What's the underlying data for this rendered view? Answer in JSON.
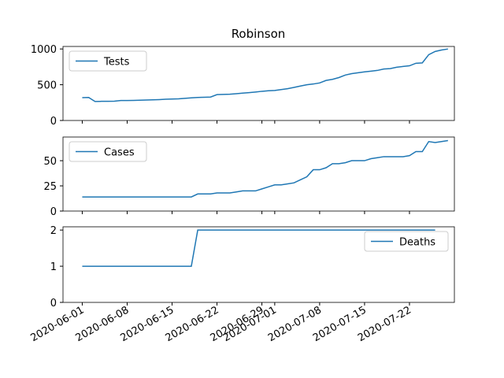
{
  "chart_data": [
    {
      "type": "line",
      "title": "Robinson",
      "x": [
        "2020-06-01",
        "2020-06-02",
        "2020-06-03",
        "2020-06-04",
        "2020-06-05",
        "2020-06-06",
        "2020-06-07",
        "2020-06-08",
        "2020-06-09",
        "2020-06-10",
        "2020-06-11",
        "2020-06-12",
        "2020-06-13",
        "2020-06-14",
        "2020-06-15",
        "2020-06-16",
        "2020-06-17",
        "2020-06-18",
        "2020-06-19",
        "2020-06-20",
        "2020-06-21",
        "2020-06-22",
        "2020-06-23",
        "2020-06-24",
        "2020-06-25",
        "2020-06-26",
        "2020-06-27",
        "2020-06-28",
        "2020-06-29",
        "2020-06-30",
        "2020-07-01",
        "2020-07-02",
        "2020-07-03",
        "2020-07-04",
        "2020-07-05",
        "2020-07-06",
        "2020-07-07",
        "2020-07-08",
        "2020-07-09",
        "2020-07-10",
        "2020-07-11",
        "2020-07-12",
        "2020-07-13",
        "2020-07-14",
        "2020-07-15",
        "2020-07-16",
        "2020-07-17",
        "2020-07-18",
        "2020-07-19",
        "2020-07-20",
        "2020-07-21",
        "2020-07-22",
        "2020-07-23",
        "2020-07-24",
        "2020-07-25",
        "2020-07-26",
        "2020-07-27",
        "2020-07-28"
      ],
      "series": [
        {
          "name": "Tests",
          "color": "#1f77b4",
          "values": [
            320,
            322,
            265,
            268,
            268,
            270,
            280,
            280,
            281,
            283,
            286,
            289,
            292,
            297,
            300,
            303,
            310,
            316,
            322,
            325,
            328,
            362,
            365,
            368,
            375,
            382,
            390,
            398,
            408,
            415,
            420,
            432,
            445,
            462,
            482,
            500,
            510,
            525,
            560,
            575,
            600,
            635,
            655,
            668,
            680,
            690,
            700,
            720,
            725,
            745,
            755,
            765,
            800,
            805,
            920,
            965,
            985,
            1000
          ]
        }
      ],
      "xlim": [
        "2020-05-29",
        "2020-07-29"
      ],
      "ylim": [
        0,
        1035
      ],
      "yticks": [
        0,
        500,
        1000
      ],
      "legend": "upper left"
    },
    {
      "type": "line",
      "x": [
        "2020-06-01",
        "2020-06-02",
        "2020-06-03",
        "2020-06-04",
        "2020-06-05",
        "2020-06-06",
        "2020-06-07",
        "2020-06-08",
        "2020-06-09",
        "2020-06-10",
        "2020-06-11",
        "2020-06-12",
        "2020-06-13",
        "2020-06-14",
        "2020-06-15",
        "2020-06-16",
        "2020-06-17",
        "2020-06-18",
        "2020-06-19",
        "2020-06-20",
        "2020-06-21",
        "2020-06-22",
        "2020-06-23",
        "2020-06-24",
        "2020-06-25",
        "2020-06-26",
        "2020-06-27",
        "2020-06-28",
        "2020-06-29",
        "2020-06-30",
        "2020-07-01",
        "2020-07-02",
        "2020-07-03",
        "2020-07-04",
        "2020-07-05",
        "2020-07-06",
        "2020-07-07",
        "2020-07-08",
        "2020-07-09",
        "2020-07-10",
        "2020-07-11",
        "2020-07-12",
        "2020-07-13",
        "2020-07-14",
        "2020-07-15",
        "2020-07-16",
        "2020-07-17",
        "2020-07-18",
        "2020-07-19",
        "2020-07-20",
        "2020-07-21",
        "2020-07-22",
        "2020-07-23",
        "2020-07-24",
        "2020-07-25",
        "2020-07-26",
        "2020-07-27",
        "2020-07-28"
      ],
      "series": [
        {
          "name": "Cases",
          "color": "#1f77b4",
          "values": [
            14,
            14,
            14,
            14,
            14,
            14,
            14,
            14,
            14,
            14,
            14,
            14,
            14,
            14,
            14,
            14,
            14,
            14,
            17,
            17,
            17,
            18,
            18,
            18,
            19,
            20,
            20,
            20,
            22,
            24,
            26,
            26,
            27,
            28,
            31,
            34,
            41,
            41,
            43,
            47,
            47,
            48,
            50,
            50,
            50,
            52,
            53,
            54,
            54,
            54,
            54,
            55,
            59,
            59,
            69,
            68,
            69,
            70
          ]
        }
      ],
      "xlim": [
        "2020-05-29",
        "2020-07-29"
      ],
      "ylim": [
        0,
        73.5
      ],
      "yticks": [
        0,
        25,
        50
      ],
      "legend": "upper left"
    },
    {
      "type": "line",
      "x": [
        "2020-06-01",
        "2020-06-02",
        "2020-06-03",
        "2020-06-04",
        "2020-06-05",
        "2020-06-06",
        "2020-06-07",
        "2020-06-08",
        "2020-06-09",
        "2020-06-10",
        "2020-06-11",
        "2020-06-12",
        "2020-06-13",
        "2020-06-14",
        "2020-06-15",
        "2020-06-16",
        "2020-06-17",
        "2020-06-18",
        "2020-06-19",
        "2020-06-20",
        "2020-06-21",
        "2020-06-22",
        "2020-06-23",
        "2020-06-24",
        "2020-06-25",
        "2020-06-26",
        "2020-06-27",
        "2020-06-28",
        "2020-06-29",
        "2020-06-30",
        "2020-07-01",
        "2020-07-02",
        "2020-07-03",
        "2020-07-04",
        "2020-07-05",
        "2020-07-06",
        "2020-07-07",
        "2020-07-08",
        "2020-07-09",
        "2020-07-10",
        "2020-07-11",
        "2020-07-12",
        "2020-07-13",
        "2020-07-14",
        "2020-07-15",
        "2020-07-16",
        "2020-07-17",
        "2020-07-18",
        "2020-07-19",
        "2020-07-20",
        "2020-07-21",
        "2020-07-22",
        "2020-07-23",
        "2020-07-24",
        "2020-07-25",
        "2020-07-26",
        "2020-07-27",
        "2020-07-28"
      ],
      "series": [
        {
          "name": "Deaths",
          "color": "#1f77b4",
          "values": [
            1,
            1,
            1,
            1,
            1,
            1,
            1,
            1,
            1,
            1,
            1,
            1,
            1,
            1,
            1,
            1,
            1,
            1,
            2,
            2,
            2,
            2,
            2,
            2,
            2,
            2,
            2,
            2,
            2,
            2,
            2,
            2,
            2,
            2,
            2,
            2,
            2,
            2,
            2,
            2,
            2,
            2,
            2,
            2,
            2,
            2,
            2,
            2,
            2,
            2,
            2,
            2,
            2,
            2,
            2,
            2,
            null,
            null
          ]
        }
      ],
      "xlim": [
        "2020-05-29",
        "2020-07-29"
      ],
      "ylim": [
        0,
        2.09
      ],
      "yticks": [
        0,
        1,
        2
      ],
      "xticks": [
        "2020-06-01",
        "2020-06-08",
        "2020-06-15",
        "2020-06-22",
        "2020-06-29",
        "2020-07-01",
        "2020-07-08",
        "2020-07-15",
        "2020-07-22"
      ],
      "legend": "upper right"
    }
  ]
}
